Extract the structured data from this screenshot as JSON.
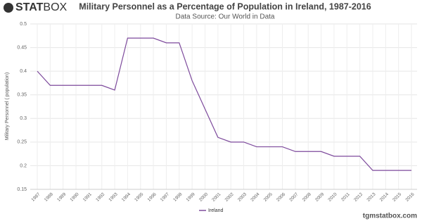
{
  "logo": {
    "bold": "STAT",
    "light": "BOX"
  },
  "footer": "tgmstatbox.com",
  "chart_data": {
    "type": "line",
    "title": "Military Personnel as a Percentage of Population in Ireland, 1987-2016",
    "subtitle": "Data Source: Our World in Data",
    "y_label": "Military Personnel ( population)",
    "categories": [
      "1987",
      "1988",
      "1989",
      "1990",
      "1991",
      "1992",
      "1993",
      "1994",
      "1995",
      "1996",
      "1997",
      "1998",
      "1999",
      "2000",
      "2001",
      "2002",
      "2003",
      "2004",
      "2005",
      "2006",
      "2007",
      "2008",
      "2009",
      "2010",
      "2011",
      "2012",
      "2013",
      "2014",
      "2015",
      "2016"
    ],
    "series": [
      {
        "name": "Ireland",
        "color": "#7d4a9c",
        "values": [
          0.4,
          0.37,
          0.37,
          0.37,
          0.37,
          0.37,
          0.36,
          0.47,
          0.47,
          0.47,
          0.46,
          0.46,
          0.38,
          0.32,
          0.26,
          0.25,
          0.25,
          0.24,
          0.24,
          0.24,
          0.23,
          0.23,
          0.23,
          0.22,
          0.22,
          0.22,
          0.19,
          0.19,
          0.19,
          0.19
        ]
      }
    ],
    "ylim": [
      0.15,
      0.5
    ],
    "yticks": [
      0.15,
      0.2,
      0.25,
      0.3,
      0.35,
      0.4,
      0.45,
      0.5
    ],
    "grid": true,
    "legend": "bottom"
  }
}
